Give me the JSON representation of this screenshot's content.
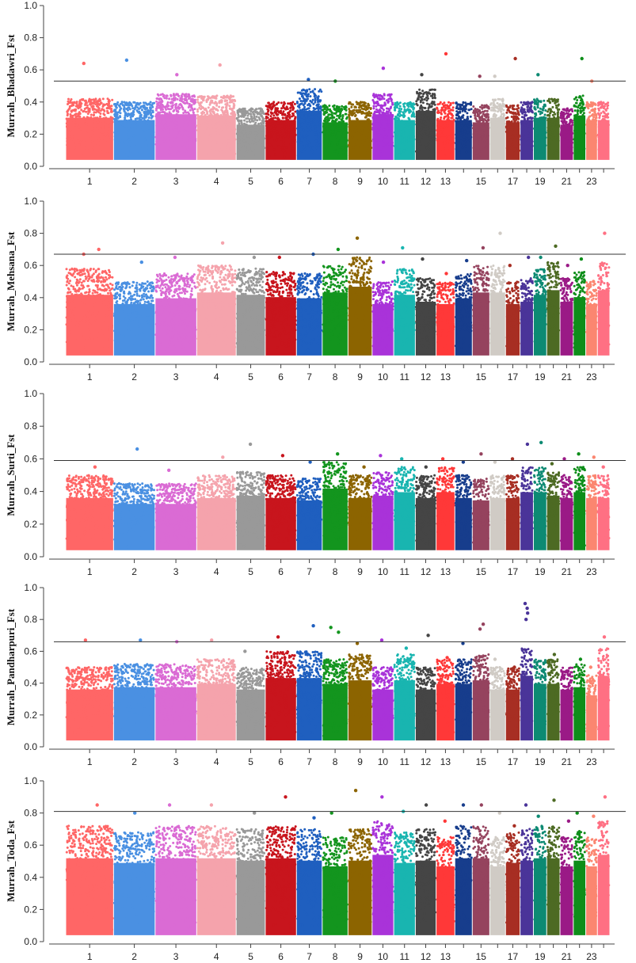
{
  "chart_data": [
    {
      "type": "scatter",
      "subtype": "manhattan",
      "ylabel": "Murrah_Bhadawri_Fst",
      "ylim": [
        0,
        1.0
      ],
      "yticks": [
        "0.0",
        "0.2",
        "0.4",
        "0.6",
        "0.8",
        "1.0"
      ],
      "threshold": 0.53,
      "xtick_labels": [
        "1",
        "2",
        "3",
        "4",
        "5",
        "6",
        "7",
        "8",
        "9",
        "10",
        "11",
        "12",
        "13",
        "15",
        "17",
        "19",
        "21",
        "23"
      ],
      "typical_max": [
        0.42,
        0.4,
        0.45,
        0.44,
        0.36,
        0.4,
        0.48,
        0.38,
        0.4,
        0.45,
        0.4,
        0.48,
        0.4,
        0.4,
        0.38,
        0.42,
        0.38,
        0.4,
        0.42,
        0.42,
        0.36,
        0.44,
        0.4,
        0.4
      ],
      "peaks": [
        [
          0.64
        ],
        [
          0.66
        ],
        [
          0.57
        ],
        [
          0.63
        ],
        [],
        [],
        [
          0.54
        ],
        [
          0.53
        ],
        [],
        [
          0.61
        ],
        [],
        [
          0.57
        ],
        [
          0.7
        ],
        [],
        [
          0.56
        ],
        [
          0.56
        ],
        [
          0.67
        ],
        [],
        [
          0.57
        ],
        [],
        [],
        [
          0.67
        ],
        [
          0.53
        ],
        []
      ]
    },
    {
      "type": "scatter",
      "subtype": "manhattan",
      "ylabel": "Murrah_Mehsana_Fst",
      "ylim": [
        0,
        1.0
      ],
      "yticks": [
        "0.0",
        "0.2",
        "0.4",
        "0.6",
        "0.8",
        "1.0"
      ],
      "threshold": 0.67,
      "xtick_labels": [
        "1",
        "2",
        "3",
        "4",
        "5",
        "6",
        "7",
        "8",
        "9",
        "10",
        "11",
        "12",
        "13",
        "15",
        "17",
        "19",
        "21",
        "23"
      ],
      "typical_max": [
        0.58,
        0.5,
        0.55,
        0.6,
        0.58,
        0.56,
        0.55,
        0.6,
        0.65,
        0.5,
        0.58,
        0.52,
        0.5,
        0.55,
        0.6,
        0.6,
        0.5,
        0.52,
        0.58,
        0.62,
        0.52,
        0.56,
        0.5,
        0.62
      ],
      "peaks": [
        [
          0.7,
          0.67
        ],
        [
          0.62
        ],
        [
          0.65
        ],
        [
          0.74
        ],
        [
          0.65
        ],
        [
          0.65
        ],
        [
          0.67
        ],
        [
          0.7
        ],
        [
          0.77
        ],
        [
          0.62
        ],
        [
          0.71
        ],
        [
          0.64
        ],
        [
          0.55
        ],
        [
          0.63
        ],
        [
          0.71
        ],
        [
          0.8
        ],
        [
          0.6
        ],
        [
          0.65
        ],
        [
          0.65
        ],
        [
          0.72
        ],
        [
          0.6
        ],
        [
          0.64
        ],
        [
          0.5
        ],
        [
          0.8
        ]
      ]
    },
    {
      "type": "scatter",
      "subtype": "manhattan",
      "ylabel": "Murrah_Surti_Fst",
      "ylim": [
        0,
        1.0
      ],
      "yticks": [
        "0.0",
        "0.2",
        "0.4",
        "0.6",
        "0.8",
        "1.0"
      ],
      "threshold": 0.59,
      "xtick_labels": [
        "1",
        "2",
        "3",
        "4",
        "5",
        "6",
        "7",
        "8",
        "9",
        "10",
        "11",
        "12",
        "13",
        "15",
        "17",
        "19",
        "21",
        "23"
      ],
      "typical_max": [
        0.5,
        0.45,
        0.45,
        0.5,
        0.52,
        0.5,
        0.48,
        0.58,
        0.5,
        0.52,
        0.55,
        0.5,
        0.55,
        0.5,
        0.48,
        0.5,
        0.5,
        0.55,
        0.55,
        0.52,
        0.5,
        0.55,
        0.5,
        0.5
      ],
      "peaks": [
        [
          0.55
        ],
        [
          0.66
        ],
        [
          0.53
        ],
        [
          0.61
        ],
        [
          0.69
        ],
        [
          0.62
        ],
        [
          0.58
        ],
        [
          0.63
        ],
        [
          0.55
        ],
        [
          0.62
        ],
        [
          0.6
        ],
        [
          0.55
        ],
        [
          0.6
        ],
        [
          0.58
        ],
        [
          0.63
        ],
        [
          0.58
        ],
        [
          0.6
        ],
        [
          0.69
        ],
        [
          0.7
        ],
        [
          0.57
        ],
        [
          0.6
        ],
        [
          0.63
        ],
        [
          0.61
        ],
        [
          0.55
        ]
      ]
    },
    {
      "type": "scatter",
      "subtype": "manhattan",
      "ylabel": "Murrah_Pandharpuri_Fst",
      "ylim": [
        0,
        1.0
      ],
      "yticks": [
        "0.0",
        "0.2",
        "0.4",
        "0.6",
        "0.8",
        "1.0"
      ],
      "threshold": 0.66,
      "xtick_labels": [
        "1",
        "2",
        "3",
        "4",
        "5",
        "6",
        "7",
        "8",
        "9",
        "10",
        "11",
        "12",
        "13",
        "15",
        "17",
        "19",
        "21",
        "23"
      ],
      "typical_max": [
        0.5,
        0.52,
        0.52,
        0.55,
        0.5,
        0.6,
        0.6,
        0.55,
        0.58,
        0.5,
        0.58,
        0.5,
        0.55,
        0.55,
        0.58,
        0.5,
        0.5,
        0.62,
        0.55,
        0.55,
        0.5,
        0.52,
        0.45,
        0.62
      ],
      "peaks": [
        [
          0.67
        ],
        [
          0.67
        ],
        [
          0.66
        ],
        [
          0.67
        ],
        [
          0.6
        ],
        [
          0.69
        ],
        [
          0.76
        ],
        [
          0.75,
          0.72
        ],
        [
          0.65
        ],
        [
          0.67
        ],
        [
          0.62
        ],
        [
          0.7
        ],
        [
          0.56
        ],
        [
          0.65
        ],
        [
          0.77,
          0.74
        ],
        [
          0.55
        ],
        [
          0.5
        ],
        [
          0.9,
          0.87,
          0.84,
          0.8
        ],
        [
          0.5
        ],
        [
          0.58
        ],
        [
          0.45
        ],
        [
          0.55
        ],
        [
          0.5
        ],
        [
          0.69
        ]
      ]
    },
    {
      "type": "scatter",
      "subtype": "manhattan",
      "ylabel": "Murrah_Toda_Fst",
      "ylim": [
        0,
        1.0
      ],
      "yticks": [
        "0.0",
        "0.2",
        "0.4",
        "0.6",
        "0.8",
        "1.0"
      ],
      "threshold": 0.81,
      "xtick_labels": [
        "1",
        "2",
        "3",
        "4",
        "5",
        "6",
        "7",
        "8",
        "9",
        "10",
        "11",
        "12",
        "13",
        "15",
        "17",
        "19",
        "21",
        "23"
      ],
      "typical_max": [
        0.72,
        0.68,
        0.72,
        0.72,
        0.7,
        0.72,
        0.7,
        0.65,
        0.7,
        0.75,
        0.68,
        0.7,
        0.65,
        0.72,
        0.72,
        0.65,
        0.68,
        0.7,
        0.72,
        0.72,
        0.65,
        0.7,
        0.65,
        0.75
      ],
      "peaks": [
        [
          0.85
        ],
        [
          0.8
        ],
        [
          0.85
        ],
        [
          0.85
        ],
        [
          0.8
        ],
        [
          0.9
        ],
        [
          0.77
        ],
        [
          0.8
        ],
        [
          0.94
        ],
        [
          0.9
        ],
        [
          0.81
        ],
        [
          0.85
        ],
        [
          0.75
        ],
        [
          0.85
        ],
        [
          0.85
        ],
        [
          0.8
        ],
        [
          0.72
        ],
        [
          0.85
        ],
        [
          0.78
        ],
        [
          0.88
        ],
        [
          0.75
        ],
        [
          0.8
        ],
        [
          0.78
        ],
        [
          0.9
        ]
      ]
    }
  ],
  "colors": {
    "chromosomes": [
      "#ff6666",
      "#4a90e2",
      "#da6bd4",
      "#f5a3ac",
      "#999999",
      "#c8151d",
      "#1f5fbf",
      "#13951e",
      "#8c6400",
      "#a933d9",
      "#19b5b0",
      "#454545",
      "#ff3838",
      "#173d8c",
      "#95435e",
      "#d0cbc5",
      "#a72e23",
      "#4a3499",
      "#0d8a73",
      "#4d6a23",
      "#9a1a86",
      "#0e8e1a",
      "#fb8670",
      "#ff7083"
    ],
    "threshold": "#333333",
    "axis": "#444444"
  }
}
